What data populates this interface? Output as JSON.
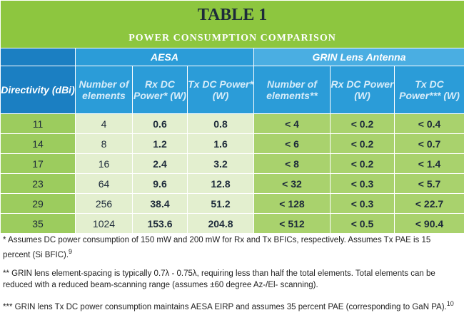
{
  "header": {
    "title": "TABLE 1",
    "subtitle": "POWER CONSUMPTION COMPARISON"
  },
  "table": {
    "groups": [
      "AESA",
      "GRIN Lens Antenna"
    ],
    "columns": [
      "Directivity (dBi)",
      "Number of elements",
      "Rx DC Power* (W)",
      "Tx DC Power* (W)",
      "Number of elements**",
      "Rx DC Power (W)",
      "Tx DC Power*** (W)"
    ],
    "rows": [
      [
        "11",
        "4",
        "0.6",
        "0.8",
        "< 4",
        "< 0.2",
        "< 0.4"
      ],
      [
        "14",
        "8",
        "1.2",
        "1.6",
        "< 6",
        "< 0.2",
        "< 0.7"
      ],
      [
        "17",
        "16",
        "2.4",
        "3.2",
        "< 8",
        "< 0.2",
        "< 1.4"
      ],
      [
        "23",
        "64",
        "9.6",
        "12.8",
        "< 32",
        "< 0.3",
        "< 5.7"
      ],
      [
        "29",
        "256",
        "38.4",
        "51.2",
        "< 128",
        "< 0.3",
        "< 22.7"
      ],
      [
        "35",
        "1024",
        "153.6",
        "204.8",
        "< 512",
        "< 0.5",
        "< 90.4"
      ]
    ]
  },
  "footnotes": [
    {
      "text": "* Assumes DC power consumption of 150 mW and 200 mW for Rx and Tx BFICs, respectively. Assumes Tx PAE is 15 percent (Si BFIC).",
      "ref": "9"
    },
    {
      "text": "** GRIN lens element-spacing is typically 0.7λ - 0.75λ, requiring less than half the total elements. Total elements can be reduced with a reduced beam-scanning range (assumes ±60 degree Az-/El- scanning)."
    },
    {
      "text": "*** GRIN lens Tx DC power consumption maintains AESA EIRP and assumes 35 percent PAE (corresponding to GaN PA).",
      "ref": "10"
    }
  ]
}
